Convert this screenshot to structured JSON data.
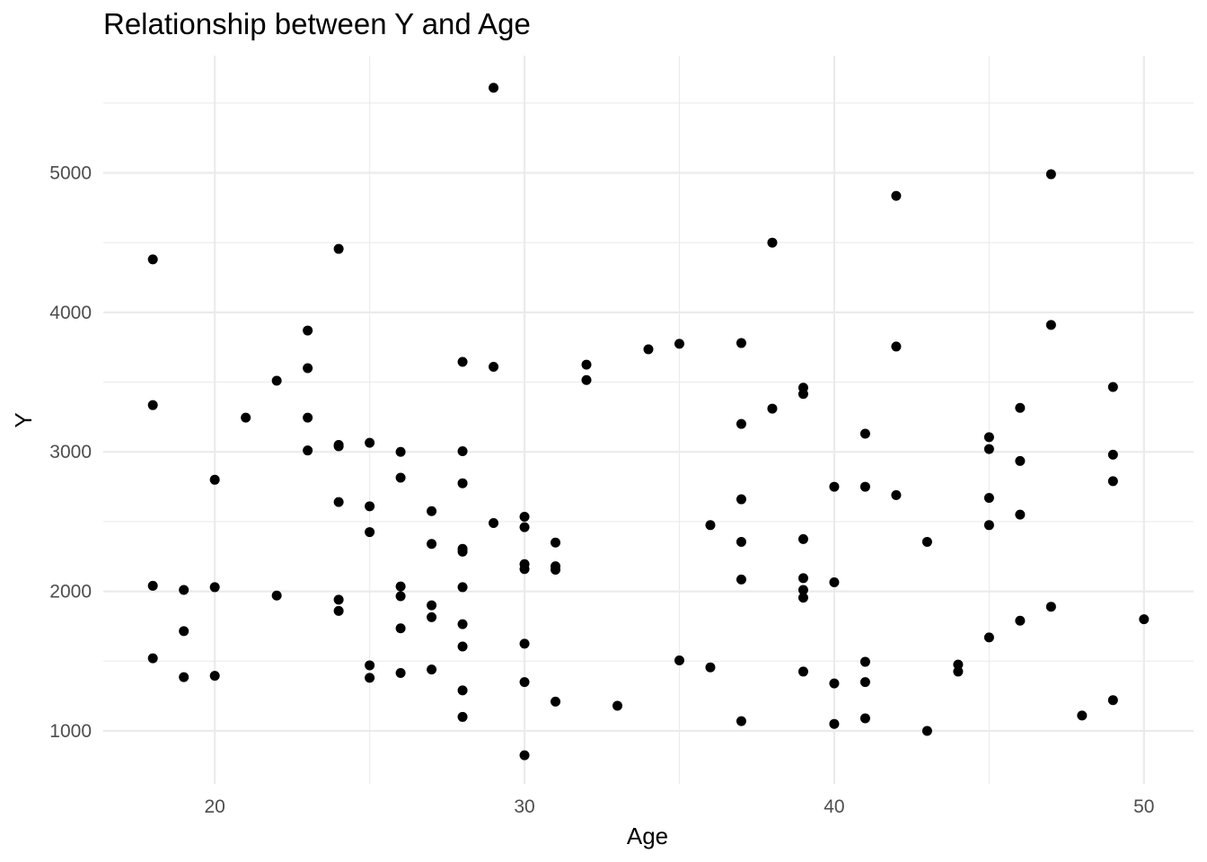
{
  "chart_data": {
    "type": "scatter",
    "title": "Relationship between Y and Age",
    "xlabel": "Age",
    "ylabel": "Y",
    "xlim": [
      16.4,
      51.6
    ],
    "ylim": [
      620,
      5840
    ],
    "x_ticks": [
      20,
      30,
      40,
      50
    ],
    "y_ticks": [
      1000,
      2000,
      3000,
      4000,
      5000
    ],
    "grid": true,
    "point_color": "#000000",
    "points": [
      {
        "x": 18,
        "y": 4380
      },
      {
        "x": 18,
        "y": 3335
      },
      {
        "x": 18,
        "y": 2040
      },
      {
        "x": 18,
        "y": 1520
      },
      {
        "x": 19,
        "y": 2010
      },
      {
        "x": 19,
        "y": 1715
      },
      {
        "x": 19,
        "y": 1385
      },
      {
        "x": 20,
        "y": 2800
      },
      {
        "x": 20,
        "y": 2030
      },
      {
        "x": 20,
        "y": 1395
      },
      {
        "x": 21,
        "y": 3245
      },
      {
        "x": 22,
        "y": 3510
      },
      {
        "x": 22,
        "y": 1970
      },
      {
        "x": 23,
        "y": 3870
      },
      {
        "x": 23,
        "y": 3600
      },
      {
        "x": 23,
        "y": 3245
      },
      {
        "x": 23,
        "y": 3010
      },
      {
        "x": 24,
        "y": 4455
      },
      {
        "x": 24,
        "y": 3050
      },
      {
        "x": 24,
        "y": 3040
      },
      {
        "x": 24,
        "y": 2640
      },
      {
        "x": 24,
        "y": 1940
      },
      {
        "x": 24,
        "y": 1860
      },
      {
        "x": 25,
        "y": 3065
      },
      {
        "x": 25,
        "y": 2610
      },
      {
        "x": 25,
        "y": 2425
      },
      {
        "x": 25,
        "y": 1470
      },
      {
        "x": 25,
        "y": 1380
      },
      {
        "x": 26,
        "y": 3000
      },
      {
        "x": 26,
        "y": 2815
      },
      {
        "x": 26,
        "y": 2035
      },
      {
        "x": 26,
        "y": 1965
      },
      {
        "x": 26,
        "y": 1735
      },
      {
        "x": 26,
        "y": 1415
      },
      {
        "x": 27,
        "y": 2575
      },
      {
        "x": 27,
        "y": 2340
      },
      {
        "x": 27,
        "y": 1900
      },
      {
        "x": 27,
        "y": 1815
      },
      {
        "x": 27,
        "y": 1440
      },
      {
        "x": 28,
        "y": 3645
      },
      {
        "x": 28,
        "y": 3005
      },
      {
        "x": 28,
        "y": 2775
      },
      {
        "x": 28,
        "y": 2305
      },
      {
        "x": 28,
        "y": 2285
      },
      {
        "x": 28,
        "y": 2030
      },
      {
        "x": 28,
        "y": 1765
      },
      {
        "x": 28,
        "y": 1605
      },
      {
        "x": 28,
        "y": 1290
      },
      {
        "x": 28,
        "y": 1100
      },
      {
        "x": 29,
        "y": 5610
      },
      {
        "x": 29,
        "y": 3610
      },
      {
        "x": 29,
        "y": 2490
      },
      {
        "x": 30,
        "y": 2535
      },
      {
        "x": 30,
        "y": 2460
      },
      {
        "x": 30,
        "y": 2195
      },
      {
        "x": 30,
        "y": 2160
      },
      {
        "x": 30,
        "y": 1625
      },
      {
        "x": 30,
        "y": 1350
      },
      {
        "x": 30,
        "y": 825
      },
      {
        "x": 31,
        "y": 2350
      },
      {
        "x": 31,
        "y": 2180
      },
      {
        "x": 31,
        "y": 2155
      },
      {
        "x": 31,
        "y": 1210
      },
      {
        "x": 32,
        "y": 3625
      },
      {
        "x": 32,
        "y": 3515
      },
      {
        "x": 33,
        "y": 1180
      },
      {
        "x": 34,
        "y": 3735
      },
      {
        "x": 35,
        "y": 3775
      },
      {
        "x": 35,
        "y": 1505
      },
      {
        "x": 36,
        "y": 2475
      },
      {
        "x": 36,
        "y": 1455
      },
      {
        "x": 37,
        "y": 3780
      },
      {
        "x": 37,
        "y": 3200
      },
      {
        "x": 37,
        "y": 2660
      },
      {
        "x": 37,
        "y": 2355
      },
      {
        "x": 37,
        "y": 2085
      },
      {
        "x": 37,
        "y": 1070
      },
      {
        "x": 38,
        "y": 4500
      },
      {
        "x": 38,
        "y": 3310
      },
      {
        "x": 39,
        "y": 3460
      },
      {
        "x": 39,
        "y": 3415
      },
      {
        "x": 39,
        "y": 2375
      },
      {
        "x": 39,
        "y": 2095
      },
      {
        "x": 39,
        "y": 2010
      },
      {
        "x": 39,
        "y": 1955
      },
      {
        "x": 39,
        "y": 1425
      },
      {
        "x": 40,
        "y": 2750
      },
      {
        "x": 40,
        "y": 2065
      },
      {
        "x": 40,
        "y": 1340
      },
      {
        "x": 40,
        "y": 1050
      },
      {
        "x": 41,
        "y": 3130
      },
      {
        "x": 41,
        "y": 2750
      },
      {
        "x": 41,
        "y": 1495
      },
      {
        "x": 41,
        "y": 1350
      },
      {
        "x": 41,
        "y": 1090
      },
      {
        "x": 42,
        "y": 4835
      },
      {
        "x": 42,
        "y": 3755
      },
      {
        "x": 42,
        "y": 2690
      },
      {
        "x": 43,
        "y": 2355
      },
      {
        "x": 43,
        "y": 1000
      },
      {
        "x": 44,
        "y": 1475
      },
      {
        "x": 44,
        "y": 1425
      },
      {
        "x": 45,
        "y": 3105
      },
      {
        "x": 45,
        "y": 3020
      },
      {
        "x": 45,
        "y": 2670
      },
      {
        "x": 45,
        "y": 2475
      },
      {
        "x": 45,
        "y": 1670
      },
      {
        "x": 46,
        "y": 3315
      },
      {
        "x": 46,
        "y": 2935
      },
      {
        "x": 46,
        "y": 2550
      },
      {
        "x": 46,
        "y": 1790
      },
      {
        "x": 47,
        "y": 4990
      },
      {
        "x": 47,
        "y": 3910
      },
      {
        "x": 47,
        "y": 1890
      },
      {
        "x": 48,
        "y": 1110
      },
      {
        "x": 49,
        "y": 3465
      },
      {
        "x": 49,
        "y": 2980
      },
      {
        "x": 49,
        "y": 2790
      },
      {
        "x": 49,
        "y": 1220
      },
      {
        "x": 50,
        "y": 1800
      }
    ]
  }
}
